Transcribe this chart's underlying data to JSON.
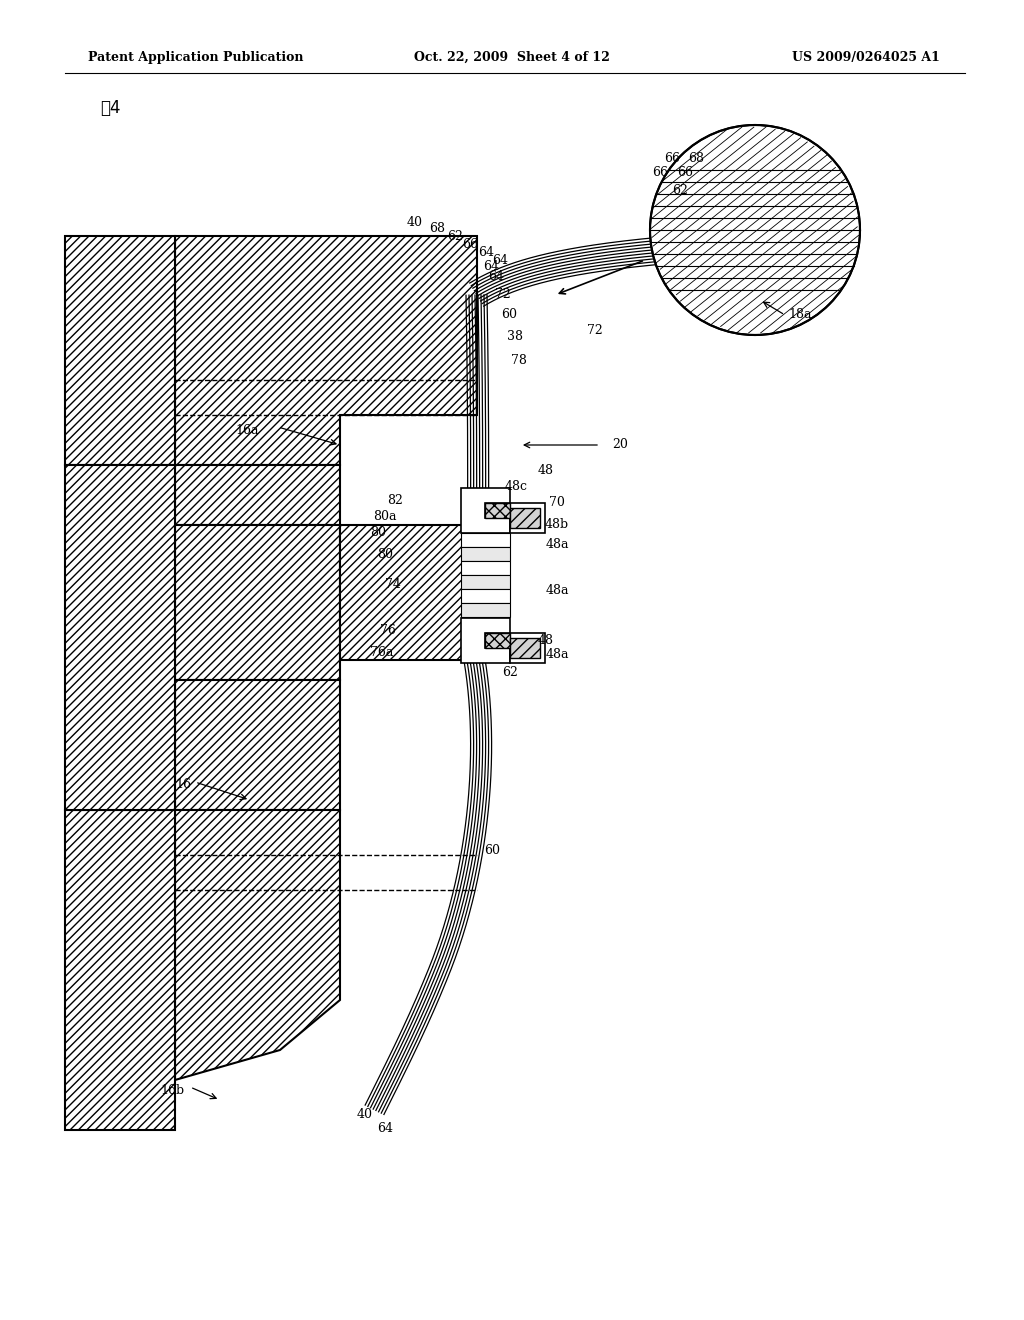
{
  "bg_color": "#ffffff",
  "header_left": "Patent Application Publication",
  "header_mid": "Oct. 22, 2009  Sheet 4 of 12",
  "header_right": "US 2009/0264025 A1",
  "line_color": "#000000"
}
